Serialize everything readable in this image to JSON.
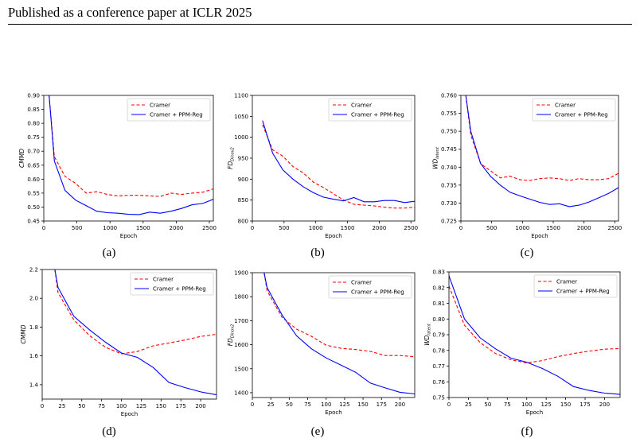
{
  "page": {
    "header": "Published as a conference paper at ICLR 2025"
  },
  "chart_data": [
    {
      "id": "a",
      "caption": "(a)",
      "type": "line",
      "xlabel": "Epoch",
      "ylabel": "CMMD",
      "ylabel_sub": "",
      "xlim": [
        0,
        2560
      ],
      "ylim": [
        0.45,
        0.9
      ],
      "xticks": [
        0,
        500,
        1000,
        1500,
        2000,
        2500
      ],
      "yticks": [
        0.45,
        0.5,
        0.55,
        0.6,
        0.65,
        0.7,
        0.75,
        0.8,
        0.85,
        0.9
      ],
      "ytick_labels": [
        "0.45",
        "0.50",
        "0.55",
        "0.60",
        "0.65",
        "0.70",
        "0.75",
        "0.80",
        "0.85",
        "0.90"
      ],
      "legend": "top-right",
      "series": [
        {
          "name": "Cramer",
          "color": "#ff0000",
          "dash": true,
          "x": [
            80,
            160,
            320,
            480,
            640,
            800,
            960,
            1120,
            1280,
            1440,
            1600,
            1760,
            1920,
            2080,
            2240,
            2400,
            2560
          ],
          "y": [
            0.9,
            0.68,
            0.61,
            0.585,
            0.55,
            0.555,
            0.545,
            0.54,
            0.542,
            0.542,
            0.54,
            0.538,
            0.55,
            0.545,
            0.55,
            0.553,
            0.565
          ]
        },
        {
          "name": "Cramer + PPM-Reg",
          "color": "#0000ff",
          "dash": false,
          "x": [
            80,
            160,
            320,
            480,
            640,
            800,
            960,
            1120,
            1280,
            1440,
            1600,
            1760,
            1920,
            2080,
            2240,
            2400,
            2560
          ],
          "y": [
            0.9,
            0.665,
            0.56,
            0.525,
            0.505,
            0.485,
            0.48,
            0.478,
            0.474,
            0.473,
            0.482,
            0.478,
            0.485,
            0.495,
            0.508,
            0.513,
            0.528
          ]
        }
      ]
    },
    {
      "id": "b",
      "caption": "(b)",
      "type": "line",
      "xlabel": "Epoch",
      "ylabel": "FD",
      "ylabel_sub": "Dinov2",
      "xlim": [
        0,
        2560
      ],
      "ylim": [
        800,
        1100
      ],
      "xticks": [
        0,
        500,
        1000,
        1500,
        2000,
        2500
      ],
      "yticks": [
        800,
        850,
        900,
        950,
        1000,
        1050,
        1100
      ],
      "ytick_labels": [
        "800",
        "850",
        "900",
        "950",
        "1000",
        "1050",
        "1100"
      ],
      "legend": "top-right",
      "series": [
        {
          "name": "Cramer",
          "color": "#ff0000",
          "dash": true,
          "x": [
            160,
            320,
            480,
            640,
            800,
            960,
            1120,
            1280,
            1440,
            1600,
            1760,
            1920,
            2080,
            2240,
            2400,
            2560
          ],
          "y": [
            1030,
            970,
            955,
            930,
            915,
            893,
            880,
            865,
            850,
            840,
            838,
            836,
            833,
            831,
            831,
            833
          ]
        },
        {
          "name": "Cramer + PPM-Reg",
          "color": "#0000ff",
          "dash": false,
          "x": [
            160,
            320,
            480,
            640,
            800,
            960,
            1120,
            1280,
            1440,
            1600,
            1760,
            1920,
            2080,
            2240,
            2400,
            2560
          ],
          "y": [
            1040,
            962,
            922,
            900,
            882,
            868,
            857,
            852,
            848,
            856,
            846,
            846,
            849,
            849,
            844,
            847
          ]
        }
      ]
    },
    {
      "id": "c",
      "caption": "(c)",
      "type": "line",
      "xlabel": "Epoch",
      "ylabel": "WD",
      "ylabel_sub": "latent",
      "xlim": [
        0,
        2560
      ],
      "ylim": [
        0.725,
        0.76
      ],
      "xticks": [
        0,
        500,
        1000,
        1500,
        2000,
        2500
      ],
      "yticks": [
        0.725,
        0.73,
        0.735,
        0.74,
        0.745,
        0.75,
        0.755,
        0.76
      ],
      "ytick_labels": [
        "0.725",
        "0.730",
        "0.735",
        "0.740",
        "0.745",
        "0.750",
        "0.755",
        "0.760"
      ],
      "legend": "top-right",
      "series": [
        {
          "name": "Cramer",
          "color": "#ff0000",
          "dash": true,
          "x": [
            80,
            160,
            320,
            480,
            640,
            800,
            960,
            1120,
            1280,
            1440,
            1600,
            1760,
            1920,
            2080,
            2240,
            2400,
            2560
          ],
          "y": [
            0.76,
            0.749,
            0.741,
            0.739,
            0.737,
            0.7375,
            0.7365,
            0.7363,
            0.7368,
            0.737,
            0.7368,
            0.7363,
            0.7368,
            0.7365,
            0.7365,
            0.7368,
            0.7383
          ]
        },
        {
          "name": "Cramer + PPM-Reg",
          "color": "#0000ff",
          "dash": false,
          "x": [
            80,
            160,
            320,
            480,
            640,
            800,
            960,
            1120,
            1280,
            1440,
            1600,
            1760,
            1920,
            2080,
            2240,
            2400,
            2560
          ],
          "y": [
            0.76,
            0.75,
            0.741,
            0.7375,
            0.735,
            0.733,
            0.732,
            0.7311,
            0.7302,
            0.7296,
            0.7298,
            0.729,
            0.7294,
            0.7303,
            0.7315,
            0.7327,
            0.7343
          ]
        }
      ]
    },
    {
      "id": "d",
      "caption": "(d)",
      "type": "line",
      "xlabel": "Epoch",
      "ylabel": "CMMD",
      "ylabel_sub": "",
      "xlim": [
        0,
        220
      ],
      "ylim": [
        1.3,
        2.2
      ],
      "xticks": [
        0,
        25,
        50,
        75,
        100,
        125,
        150,
        175,
        200
      ],
      "yticks": [
        1.4,
        1.6,
        1.8,
        2.0,
        2.2
      ],
      "ytick_labels": [
        "1.4",
        "1.6",
        "1.8",
        "2.0",
        "2.2"
      ],
      "legend": "top-right",
      "series": [
        {
          "name": "Cramer",
          "color": "#ff0000",
          "dash": true,
          "x": [
            16,
            20,
            40,
            60,
            80,
            100,
            120,
            140,
            160,
            180,
            200,
            220
          ],
          "y": [
            2.2,
            2.04,
            1.85,
            1.74,
            1.66,
            1.615,
            1.63,
            1.67,
            1.69,
            1.71,
            1.735,
            1.75
          ]
        },
        {
          "name": "Cramer + PPM-Reg",
          "color": "#0000ff",
          "dash": false,
          "x": [
            16,
            20,
            40,
            60,
            80,
            100,
            120,
            140,
            160,
            180,
            200,
            220
          ],
          "y": [
            2.2,
            2.075,
            1.875,
            1.78,
            1.695,
            1.62,
            1.59,
            1.52,
            1.415,
            1.38,
            1.35,
            1.33
          ]
        }
      ]
    },
    {
      "id": "e",
      "caption": "(e)",
      "type": "line",
      "xlabel": "Epoch",
      "ylabel": "FD",
      "ylabel_sub": "Dinov2",
      "xlim": [
        0,
        220
      ],
      "ylim": [
        1380,
        1900
      ],
      "xticks": [
        0,
        25,
        50,
        75,
        100,
        125,
        150,
        175,
        200
      ],
      "yticks": [
        1400,
        1500,
        1600,
        1700,
        1800,
        1900
      ],
      "ytick_labels": [
        "1400",
        "1500",
        "1600",
        "1700",
        "1800",
        "1900"
      ],
      "legend": "top-right",
      "series": [
        {
          "name": "Cramer",
          "color": "#ff0000",
          "dash": true,
          "x": [
            16,
            20,
            40,
            60,
            80,
            100,
            120,
            140,
            160,
            180,
            200,
            220
          ],
          "y": [
            1900,
            1825,
            1715,
            1665,
            1635,
            1598,
            1585,
            1580,
            1572,
            1555,
            1555,
            1550
          ]
        },
        {
          "name": "Cramer + PPM-Reg",
          "color": "#0000ff",
          "dash": false,
          "x": [
            16,
            20,
            40,
            60,
            80,
            100,
            120,
            140,
            160,
            180,
            200,
            220
          ],
          "y": [
            1900,
            1838,
            1725,
            1637,
            1583,
            1545,
            1515,
            1485,
            1440,
            1420,
            1402,
            1395
          ]
        }
      ]
    },
    {
      "id": "f",
      "caption": "(f)",
      "type": "line",
      "xlabel": "Epoch",
      "ylabel": "WD",
      "ylabel_sub": "latent",
      "xlim": [
        0,
        220
      ],
      "ylim": [
        0.75,
        0.83
      ],
      "xticks": [
        0,
        25,
        50,
        75,
        100,
        125,
        150,
        175,
        200
      ],
      "yticks": [
        0.75,
        0.76,
        0.77,
        0.78,
        0.79,
        0.8,
        0.81,
        0.82,
        0.83
      ],
      "ytick_labels": [
        "0.75",
        "0.76",
        "0.77",
        "0.78",
        "0.79",
        "0.80",
        "0.81",
        "0.82",
        "0.83"
      ],
      "legend": "top-right",
      "series": [
        {
          "name": "Cramer",
          "color": "#ff0000",
          "dash": true,
          "x": [
            0,
            20,
            40,
            60,
            80,
            100,
            120,
            140,
            160,
            180,
            200,
            220
          ],
          "y": [
            0.821,
            0.796,
            0.785,
            0.778,
            0.774,
            0.772,
            0.7735,
            0.776,
            0.778,
            0.7795,
            0.7808,
            0.7812
          ]
        },
        {
          "name": "Cramer + PPM-Reg",
          "color": "#0000ff",
          "dash": false,
          "x": [
            0,
            20,
            40,
            60,
            80,
            100,
            120,
            140,
            160,
            180,
            200,
            220
          ],
          "y": [
            0.8275,
            0.8,
            0.788,
            0.781,
            0.775,
            0.7725,
            0.7685,
            0.7635,
            0.757,
            0.7545,
            0.7528,
            0.752
          ]
        }
      ]
    }
  ]
}
